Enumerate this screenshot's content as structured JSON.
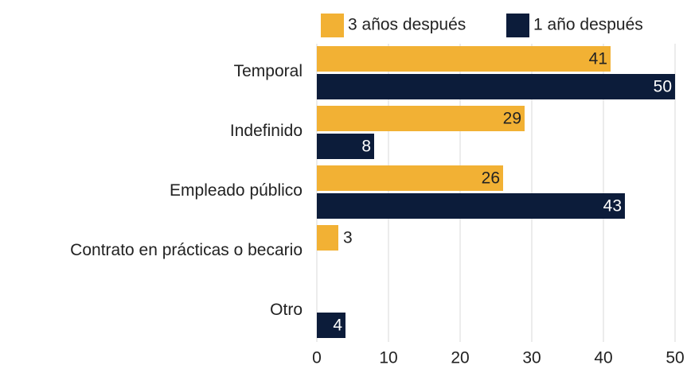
{
  "chart_data": {
    "type": "bar",
    "orientation": "horizontal",
    "categories": [
      "Temporal",
      "Indefinido",
      "Empleado público",
      "Contrato en prácticas o becario",
      "Otro"
    ],
    "series": [
      {
        "name": "3 años después",
        "color": "#f2b134",
        "values": [
          41,
          29,
          26,
          3,
          null
        ]
      },
      {
        "name": "1 año después",
        "color": "#0c1c3a",
        "values": [
          50,
          8,
          43,
          null,
          4
        ]
      }
    ],
    "xlim": [
      0,
      50
    ],
    "xticks": [
      0,
      10,
      20,
      30,
      40,
      50
    ],
    "grid": true,
    "legend": "top"
  }
}
